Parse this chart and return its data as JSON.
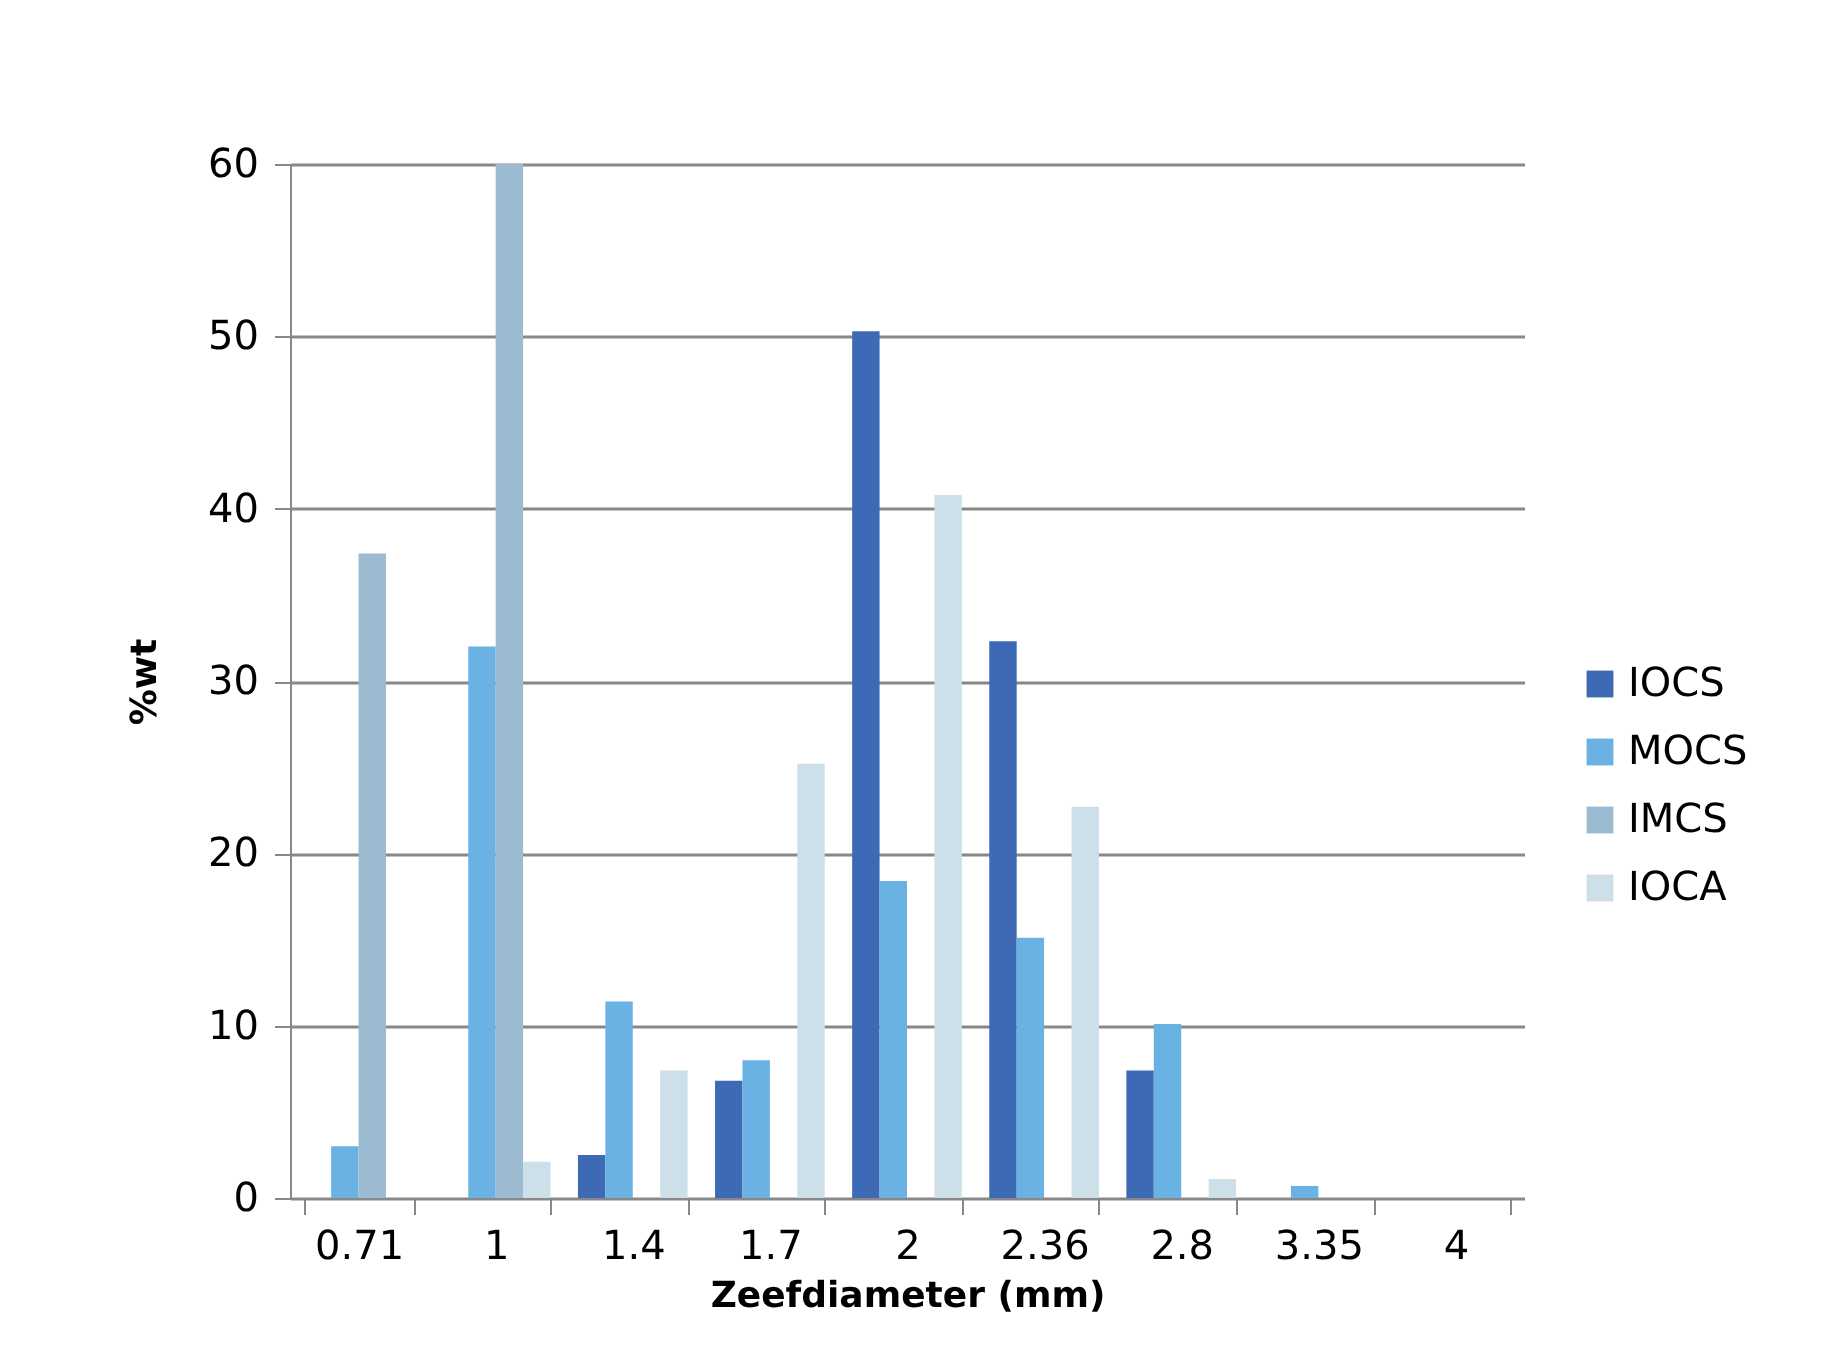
{
  "chart_data": {
    "type": "bar",
    "xlabel": "Zeefdiameter (mm)",
    "ylabel": "%wt",
    "categories": [
      "0.71",
      "1",
      "1.4",
      "1.7",
      "2",
      "2.36",
      "2.8",
      "3.35",
      "4"
    ],
    "series": [
      {
        "name": "IOCS",
        "color": "#3d69b5",
        "values": [
          0,
          0,
          2.5,
          6.8,
          50.3,
          32.3,
          7.4,
          0,
          0
        ]
      },
      {
        "name": "MOCS",
        "color": "#6ab2e4",
        "values": [
          3.0,
          32.0,
          11.4,
          8.0,
          18.4,
          15.1,
          10.1,
          0.7,
          0
        ]
      },
      {
        "name": "IMCS",
        "color": "#9bbbd0",
        "values": [
          37.4,
          60,
          0,
          0,
          0,
          0,
          0,
          0,
          0
        ]
      },
      {
        "name": "IOCA",
        "color": "#cde0ea",
        "values": [
          0,
          2.1,
          7.4,
          25.2,
          40.8,
          22.7,
          1.1,
          0,
          0
        ]
      }
    ],
    "ylim": [
      0,
      60
    ],
    "yticks": [
      0,
      10,
      20,
      30,
      40,
      50,
      60
    ],
    "grid": "y",
    "legend": "right"
  }
}
